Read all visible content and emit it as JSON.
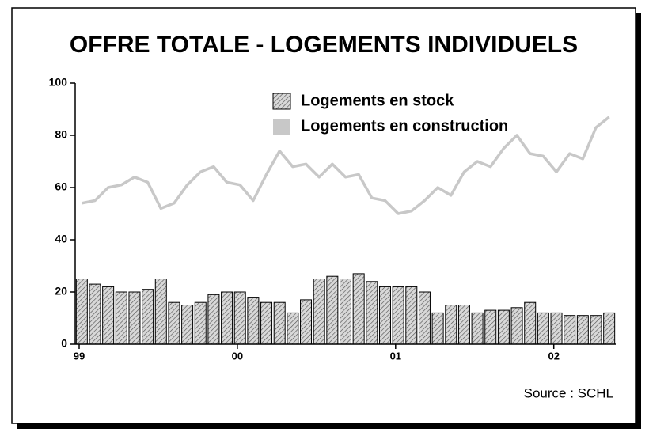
{
  "chart_data": {
    "type": "bar",
    "title": "OFFRE TOTALE - LOGEMENTS INDIVIDUELS",
    "source": "Source : SCHL",
    "categories": [
      "99",
      null,
      null,
      null,
      null,
      null,
      null,
      null,
      null,
      null,
      null,
      null,
      "00",
      null,
      null,
      null,
      null,
      null,
      null,
      null,
      null,
      null,
      null,
      null,
      "01",
      null,
      null,
      null,
      null,
      null,
      null,
      null,
      null,
      null,
      null,
      null,
      "02",
      null,
      null,
      null,
      null
    ],
    "series": [
      {
        "name": "Logements en stock",
        "type": "bar",
        "color": "#888888",
        "values": [
          25,
          23,
          22,
          20,
          20,
          21,
          25,
          16,
          15,
          16,
          19,
          20,
          20,
          18,
          16,
          16,
          12,
          17,
          25,
          26,
          25,
          27,
          24,
          22,
          22,
          22,
          20,
          12,
          15,
          15,
          12,
          13,
          13,
          14,
          16,
          12,
          12,
          11,
          11,
          11,
          12
        ]
      },
      {
        "name": "Logements en construction",
        "type": "line",
        "color": "#c8c8c8",
        "values": [
          54,
          55,
          60,
          61,
          64,
          62,
          52,
          54,
          61,
          66,
          68,
          62,
          61,
          55,
          65,
          74,
          68,
          69,
          64,
          69,
          64,
          65,
          56,
          55,
          50,
          51,
          55,
          60,
          57,
          66,
          70,
          68,
          75,
          80,
          73,
          72,
          66,
          73,
          71,
          83,
          87
        ]
      }
    ],
    "ylim": [
      0,
      100
    ],
    "yticks": [
      0,
      20,
      40,
      60,
      80,
      100
    ],
    "grid": false
  }
}
